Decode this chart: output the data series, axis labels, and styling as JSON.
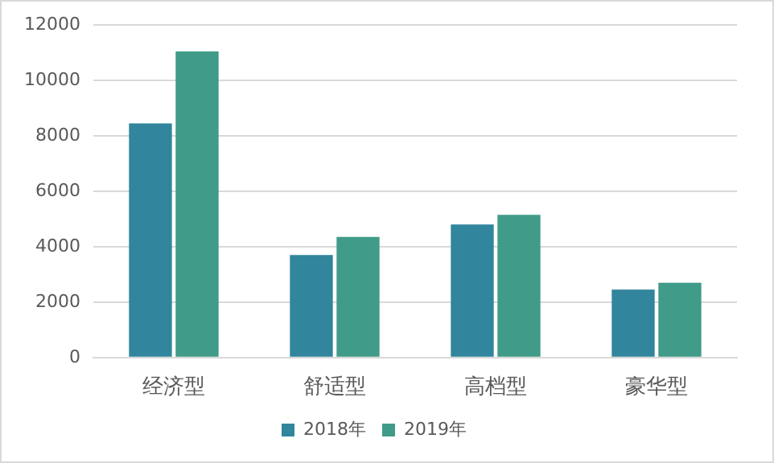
{
  "chart_data": {
    "type": "bar",
    "categories": [
      "经济型",
      "舒适型",
      "高档型",
      "豪华型"
    ],
    "series": [
      {
        "name": "2018年",
        "color": "#31859c",
        "values": [
          8450,
          3700,
          4800,
          2450
        ]
      },
      {
        "name": "2019年",
        "color": "#409b88",
        "values": [
          11050,
          4350,
          5150,
          2700
        ]
      }
    ],
    "ylim": [
      0,
      12000
    ],
    "yticks": [
      0,
      2000,
      4000,
      6000,
      8000,
      10000,
      12000
    ],
    "grid": "y",
    "legend": "bottom"
  }
}
